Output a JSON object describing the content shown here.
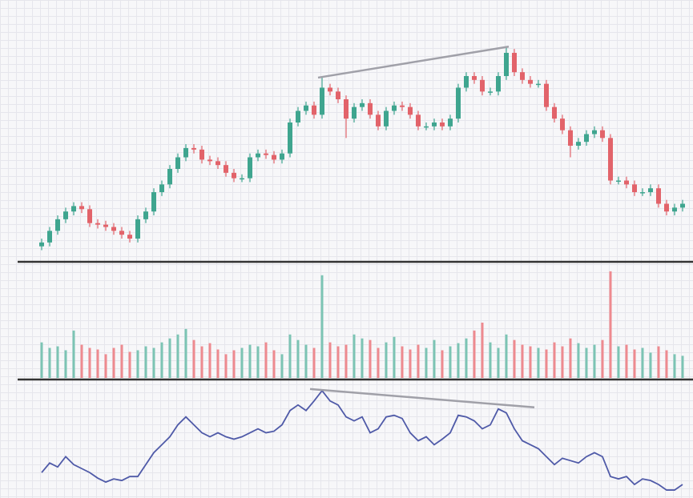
{
  "chart_data": [
    {
      "type": "candlestick",
      "up_color": "#3fa58f",
      "down_color": "#e2636a",
      "ylim": [
        0,
        330
      ],
      "open": [
        20,
        25,
        40,
        55,
        65,
        72,
        68,
        50,
        48,
        45,
        40,
        35,
        30,
        55,
        65,
        90,
        100,
        120,
        135,
        147,
        145,
        132,
        130,
        125,
        115,
        108,
        108,
        135,
        140,
        138,
        132,
        140,
        180,
        195,
        202,
        190,
        225,
        220,
        210,
        185,
        200,
        205,
        190,
        175,
        195,
        202,
        200,
        190,
        175,
        175,
        180,
        175,
        185,
        225,
        240,
        235,
        220,
        220,
        240,
        270,
        245,
        235,
        230,
        230,
        200,
        185,
        170,
        150,
        155,
        165,
        170,
        160,
        105,
        105,
        100,
        90,
        90,
        95,
        75,
        65,
        70
      ],
      "high": [
        30,
        45,
        60,
        70,
        77,
        77,
        73,
        55,
        53,
        50,
        45,
        40,
        60,
        70,
        95,
        105,
        125,
        140,
        152,
        152,
        150,
        137,
        135,
        130,
        120,
        113,
        140,
        145,
        145,
        143,
        145,
        185,
        200,
        207,
        207,
        238,
        230,
        225,
        215,
        205,
        210,
        210,
        195,
        200,
        207,
        207,
        205,
        195,
        180,
        185,
        185,
        190,
        230,
        245,
        245,
        240,
        225,
        245,
        278,
        275,
        250,
        240,
        235,
        235,
        205,
        190,
        175,
        160,
        170,
        175,
        175,
        165,
        110,
        110,
        105,
        95,
        100,
        100,
        80,
        75,
        80
      ],
      "low": [
        15,
        20,
        35,
        50,
        60,
        63,
        45,
        43,
        40,
        35,
        30,
        25,
        25,
        50,
        60,
        85,
        95,
        115,
        130,
        140,
        127,
        125,
        120,
        110,
        103,
        103,
        103,
        130,
        133,
        127,
        127,
        135,
        175,
        190,
        185,
        185,
        215,
        205,
        160,
        180,
        195,
        185,
        170,
        170,
        190,
        195,
        185,
        170,
        170,
        170,
        170,
        170,
        180,
        220,
        230,
        215,
        215,
        215,
        235,
        240,
        230,
        225,
        225,
        195,
        180,
        165,
        135,
        145,
        150,
        160,
        155,
        100,
        100,
        95,
        85,
        85,
        85,
        70,
        60,
        60,
        65
      ],
      "close": [
        25,
        40,
        55,
        65,
        72,
        68,
        50,
        48,
        45,
        40,
        35,
        30,
        55,
        65,
        90,
        100,
        120,
        135,
        147,
        145,
        132,
        130,
        125,
        115,
        108,
        108,
        135,
        140,
        138,
        132,
        140,
        180,
        195,
        202,
        190,
        225,
        220,
        210,
        185,
        200,
        205,
        190,
        175,
        195,
        202,
        200,
        190,
        175,
        175,
        180,
        175,
        185,
        225,
        240,
        235,
        220,
        220,
        240,
        270,
        245,
        235,
        230,
        230,
        200,
        185,
        170,
        150,
        155,
        165,
        170,
        160,
        105,
        105,
        100,
        90,
        90,
        95,
        75,
        65,
        70,
        75
      ],
      "trendline": {
        "x": [
          34.5,
          58.3
        ],
        "y": [
          238,
          278
        ],
        "color": "#a0a0a8"
      }
    },
    {
      "type": "bar",
      "up_color": "#7cc4b4",
      "down_color": "#ee8a8f",
      "ylim": [
        0,
        145
      ],
      "values": [
        45,
        38,
        40,
        35,
        60,
        42,
        38,
        36,
        30,
        38,
        42,
        33,
        35,
        40,
        38,
        45,
        50,
        55,
        62,
        48,
        40,
        44,
        36,
        30,
        35,
        38,
        42,
        40,
        45,
        35,
        30,
        55,
        48,
        42,
        38,
        130,
        45,
        40,
        42,
        55,
        50,
        48,
        38,
        45,
        52,
        40,
        36,
        42,
        38,
        48,
        35,
        40,
        44,
        50,
        60,
        70,
        45,
        38,
        55,
        48,
        42,
        40,
        38,
        36,
        45,
        40,
        50,
        44,
        38,
        42,
        48,
        135,
        40,
        42,
        36,
        38,
        32,
        40,
        35,
        30,
        28
      ]
    },
    {
      "type": "line",
      "color": "#4f5aa8",
      "ylim": [
        0,
        147
      ],
      "values": [
        32,
        44,
        39,
        52,
        42,
        37,
        32,
        25,
        20,
        24,
        22,
        27,
        27,
        42,
        57,
        67,
        77,
        92,
        102,
        92,
        82,
        77,
        82,
        77,
        74,
        77,
        82,
        87,
        82,
        84,
        92,
        110,
        117,
        110,
        122,
        135,
        122,
        117,
        102,
        97,
        102,
        82,
        87,
        102,
        104,
        100,
        82,
        72,
        77,
        67,
        74,
        82,
        104,
        102,
        97,
        87,
        92,
        112,
        107,
        87,
        72,
        67,
        62,
        52,
        42,
        50,
        47,
        44,
        52,
        57,
        52,
        27,
        24,
        27,
        17,
        24,
        22,
        17,
        10,
        10,
        17
      ],
      "trendline": {
        "x": [
          33.5,
          61.5
        ],
        "y": [
          137,
          114
        ],
        "color": "#a0a0a8"
      }
    }
  ]
}
